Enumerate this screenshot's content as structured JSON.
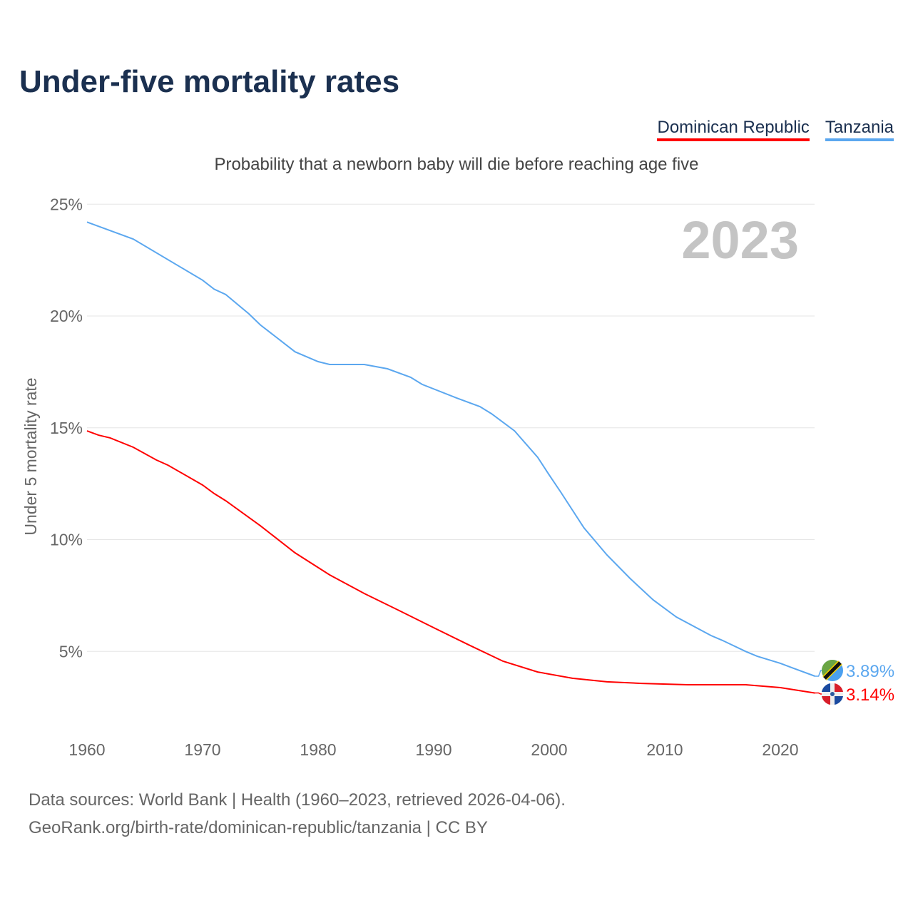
{
  "header": {
    "title": "Under-five mortality rates",
    "subtitle": "Probability that a newborn baby will die before reaching age five"
  },
  "footer": {
    "line1": "Data sources: World Bank | Health (1960–2023, retrieved 2026-04-06).",
    "line2": "GeoRank.org/birth-rate/dominican-republic/tanzania | CC BY"
  },
  "chart_data": {
    "type": "line",
    "title": "Under-five mortality rates",
    "ylabel": "Under 5 mortality rate",
    "xlabel": "",
    "year_label": "2023",
    "xlim": [
      1960,
      2023
    ],
    "ylim": [
      0,
      25
    ],
    "x_ticks": [
      "1960",
      "1970",
      "1980",
      "1990",
      "2000",
      "2010",
      "2020"
    ],
    "y_ticks": [
      "5%",
      "10%",
      "15%",
      "20%",
      "25%"
    ],
    "grid": true,
    "legend_position": "top-right",
    "series": [
      {
        "name": "Dominican Republic",
        "color": "#ff0000",
        "end_label": "3.14%",
        "x": [
          1960,
          1961,
          1962,
          1964,
          1966,
          1967,
          1970,
          1971,
          1972,
          1975,
          1978,
          1981,
          1984,
          1987,
          1990,
          1993,
          1996,
          1999,
          2002,
          2005,
          2008,
          2012,
          2017,
          2020,
          2023
        ],
        "y": [
          14.86,
          14.67,
          14.55,
          14.13,
          13.56,
          13.33,
          12.44,
          12.06,
          11.74,
          10.62,
          9.41,
          8.42,
          7.59,
          6.83,
          6.06,
          5.3,
          4.56,
          4.08,
          3.8,
          3.64,
          3.57,
          3.51,
          3.51,
          3.38,
          3.14
        ]
      },
      {
        "name": "Tanzania",
        "color": "#5ba7ef",
        "end_label": "3.89%",
        "x": [
          1960,
          1964,
          1970,
          1971,
          1972,
          1974,
          1975,
          1978,
          1980,
          1981,
          1984,
          1986,
          1988,
          1989,
          1992,
          1994,
          1995,
          1997,
          1999,
          2000,
          2001,
          2003,
          2005,
          2007,
          2009,
          2011,
          2014,
          2015,
          2017,
          2018,
          2020,
          2021,
          2023
        ],
        "y": [
          24.2,
          23.44,
          21.6,
          21.2,
          20.96,
          20.1,
          19.6,
          18.4,
          17.96,
          17.83,
          17.83,
          17.64,
          17.26,
          16.94,
          16.33,
          15.95,
          15.63,
          14.86,
          13.68,
          12.89,
          12.12,
          10.53,
          9.31,
          8.26,
          7.3,
          6.54,
          5.71,
          5.49,
          5.0,
          4.78,
          4.47,
          4.27,
          3.89
        ]
      }
    ]
  }
}
